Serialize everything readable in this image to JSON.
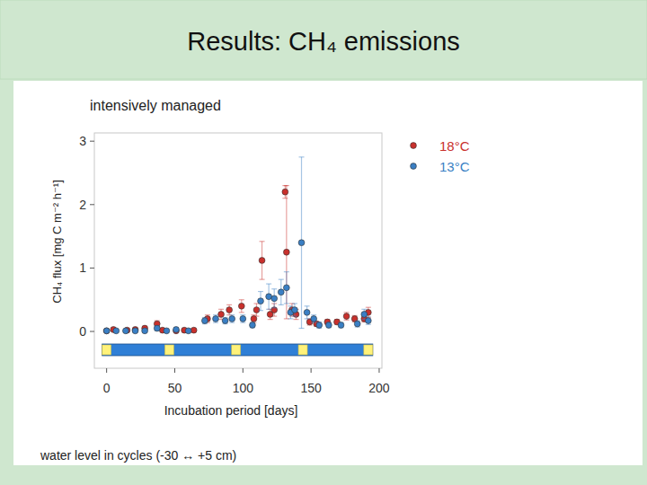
{
  "chart_data": {
    "type": "scatter",
    "title": "Results: CH₄ emissions",
    "subtitle": "intensively managed",
    "x_label": "Incubation period [days]",
    "y_label": "CH₄ flux [mg C m⁻² h⁻¹]",
    "annotation": "water level in cycles (-30 ↔ +5 cm)",
    "xlim": [
      -9,
      202
    ],
    "ylim": [
      -0.58,
      3.13
    ],
    "xticks": [
      0,
      50,
      100,
      150,
      200
    ],
    "yticks": [
      0,
      1,
      2,
      3
    ],
    "grid": false,
    "legend": "right",
    "water_level_switches": [
      0,
      46,
      95,
      144,
      192
    ],
    "series": [
      {
        "name": "18°C",
        "color": "#c9302c",
        "marker": "circle",
        "x": [
          0,
          5,
          15,
          21,
          28,
          37,
          41,
          51,
          57,
          64,
          74,
          84,
          90,
          99,
          108,
          110,
          114,
          120,
          123,
          131,
          132,
          136,
          139,
          149,
          154,
          162,
          169,
          176,
          182,
          189,
          192
        ],
        "values": [
          0.01,
          0.03,
          0.02,
          0.03,
          0.05,
          0.12,
          0.02,
          0.01,
          0.02,
          0.02,
          0.2,
          0.27,
          0.34,
          0.4,
          0.2,
          0.34,
          1.12,
          0.27,
          0.34,
          2.2,
          1.25,
          0.34,
          0.27,
          0.15,
          0.12,
          0.15,
          0.15,
          0.24,
          0.2,
          0.2,
          0.3
        ],
        "errors": [
          0.02,
          0.02,
          0.02,
          0.02,
          0.03,
          0.05,
          0.02,
          0.02,
          0.02,
          0.02,
          0.06,
          0.08,
          0.08,
          0.1,
          0.06,
          0.1,
          0.3,
          0.08,
          0.1,
          0.1,
          1.05,
          0.1,
          0.08,
          0.05,
          0.04,
          0.04,
          0.04,
          0.06,
          0.05,
          0.05,
          0.08
        ]
      },
      {
        "name": "13°C",
        "color": "#3a7fc4",
        "marker": "circle",
        "x": [
          0,
          7,
          14,
          21,
          28,
          37,
          44,
          51,
          60,
          72,
          80,
          87,
          92,
          100,
          107,
          113,
          119,
          123,
          128,
          132,
          135,
          138,
          143,
          147,
          152,
          156,
          163,
          172,
          184,
          189,
          192
        ],
        "values": [
          0.01,
          0.01,
          0.01,
          0.01,
          0.01,
          0.05,
          0.01,
          0.03,
          0.01,
          0.17,
          0.2,
          0.17,
          0.2,
          0.2,
          0.1,
          0.48,
          0.55,
          0.52,
          0.62,
          0.69,
          0.3,
          0.34,
          1.4,
          0.3,
          0.2,
          0.1,
          0.1,
          0.1,
          0.12,
          0.27,
          0.17
        ],
        "errors": [
          0.02,
          0.02,
          0.02,
          0.02,
          0.02,
          0.04,
          0.02,
          0.03,
          0.02,
          0.05,
          0.06,
          0.05,
          0.06,
          0.06,
          0.04,
          0.15,
          0.2,
          0.15,
          0.2,
          0.25,
          0.1,
          0.1,
          1.35,
          0.1,
          0.06,
          0.05,
          0.04,
          0.04,
          0.05,
          0.08,
          0.06
        ]
      }
    ]
  }
}
